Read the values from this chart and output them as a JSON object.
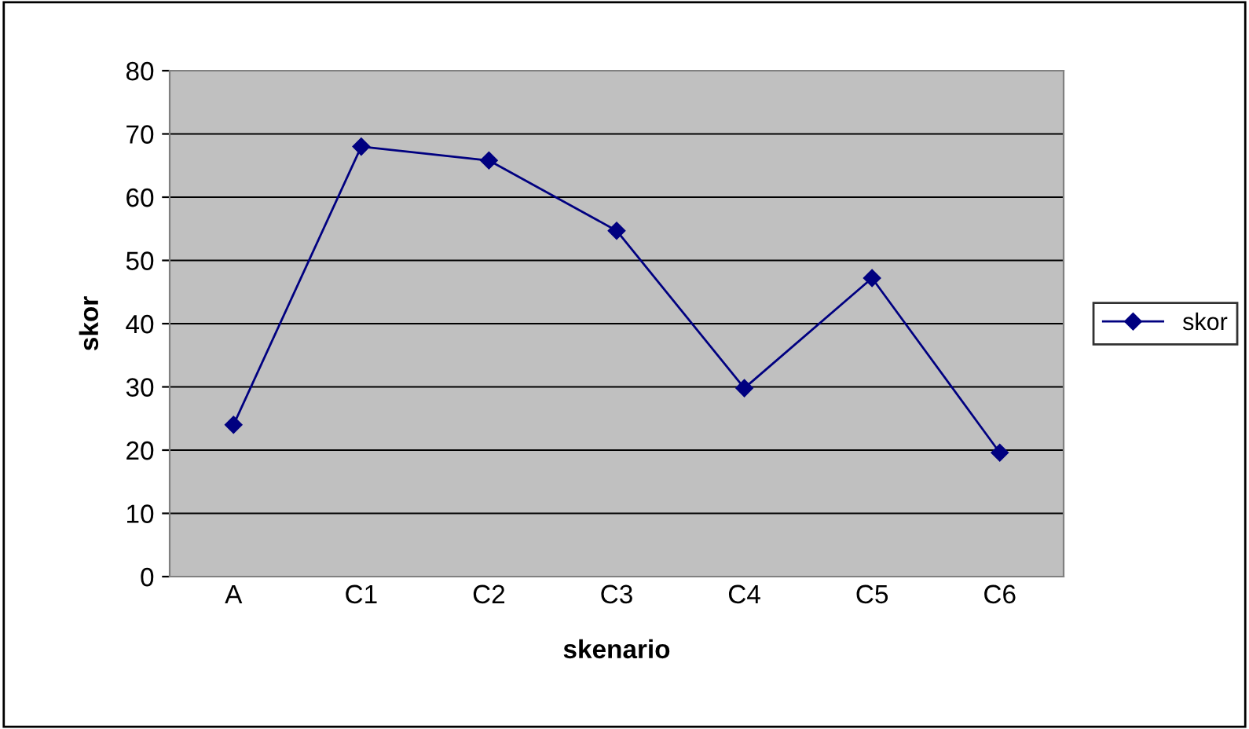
{
  "chart_data": {
    "type": "line",
    "xlabel": "skenario",
    "ylabel": "skor",
    "categories": [
      "A",
      "C1",
      "C2",
      "C3",
      "C4",
      "C5",
      "C6"
    ],
    "series": [
      {
        "name": "skor",
        "color": "#000080",
        "values": [
          24,
          68,
          65.8,
          54.7,
          29.8,
          47.2,
          19.6
        ]
      }
    ],
    "ylim": [
      0,
      80
    ],
    "yticks": [
      0,
      10,
      20,
      30,
      40,
      50,
      60,
      70,
      80
    ],
    "grid": "y",
    "legend": "right",
    "marker": "diamond",
    "line_style": "solid"
  }
}
